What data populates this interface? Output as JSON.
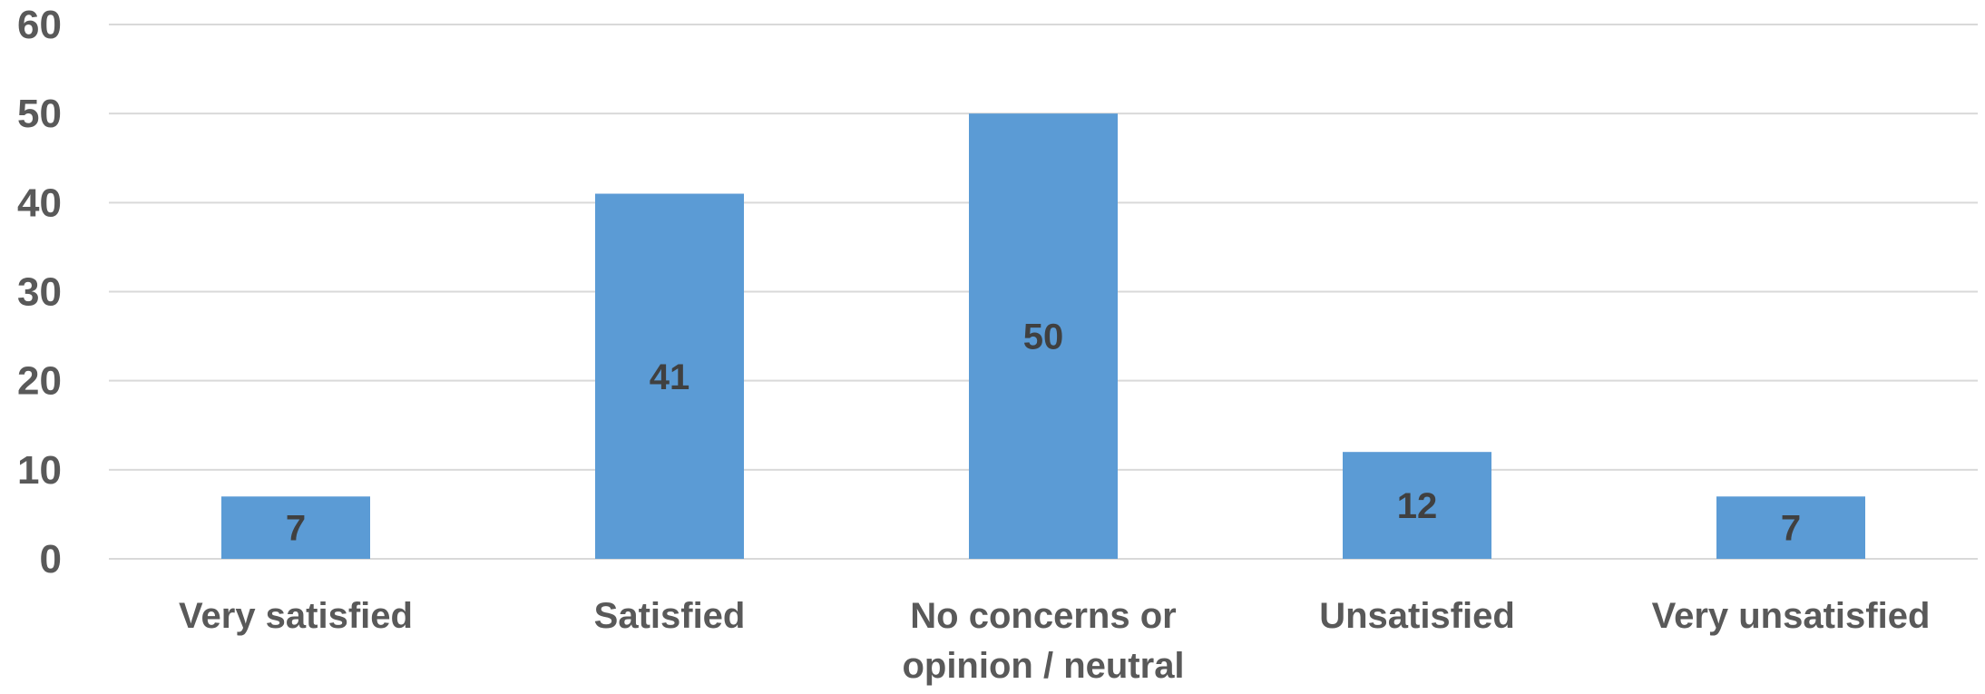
{
  "chart_data": {
    "type": "bar",
    "title": "",
    "xlabel": "",
    "ylabel": "",
    "categories": [
      [
        "Very satisfied"
      ],
      [
        "Satisfied"
      ],
      [
        "No concerns or",
        "opinion / neutral"
      ],
      [
        "Unsatisfied"
      ],
      [
        "Very unsatisfied"
      ]
    ],
    "values": [
      7,
      41,
      50,
      12,
      7
    ],
    "ylim": [
      0,
      60
    ],
    "yticks": [
      0,
      10,
      20,
      30,
      40,
      50,
      60
    ],
    "grid": true,
    "legend": "none",
    "data_labels": true,
    "colors": {
      "bar": "#5B9BD5",
      "grid": "#D9D9D9",
      "axis_text": "#595959",
      "data_label": "#404040"
    }
  }
}
